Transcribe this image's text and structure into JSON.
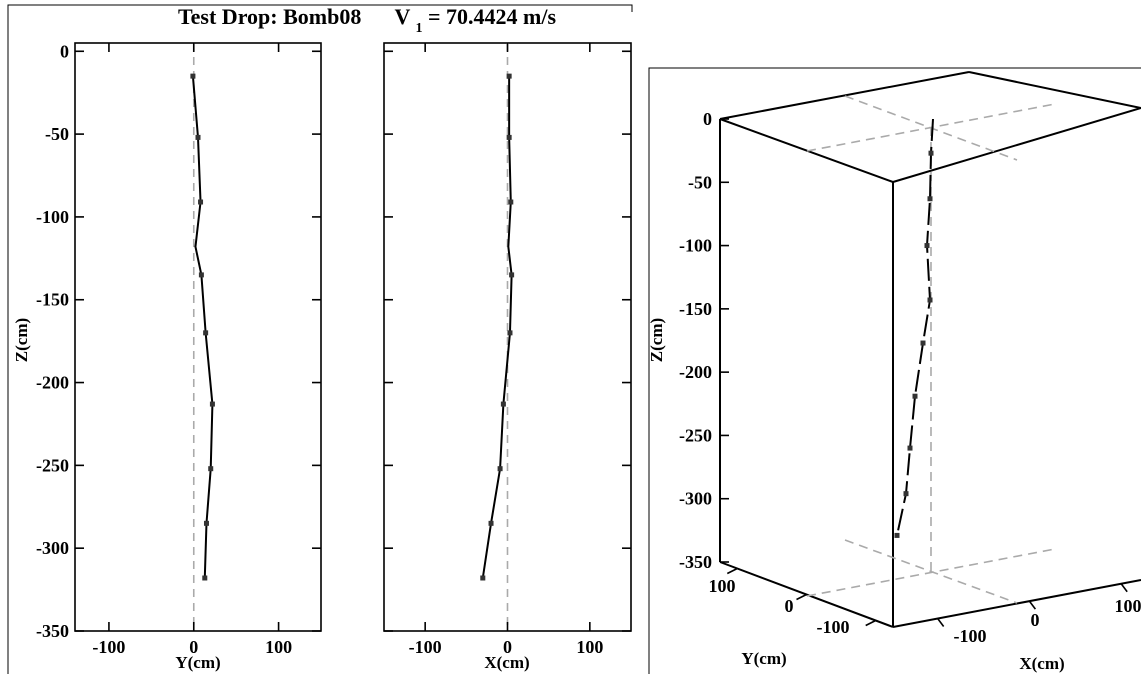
{
  "title": {
    "prefix": "Test Drop: Bomb08",
    "velocity_symbol": "V",
    "velocity_subscript": "1",
    "velocity_value": "= 70.4424 m/s"
  },
  "colors": {
    "trajectory": "#000000",
    "reference": "#aaaaaa",
    "frame": "#000000",
    "background": "#ffffff"
  },
  "chart_data": [
    {
      "type": "line",
      "name": "side-view-Y",
      "xlabel": "Y(cm)",
      "ylabel": "Z(cm)",
      "xlim": [
        -140,
        150
      ],
      "ylim": [
        -350,
        5
      ],
      "xticks": [
        -100,
        0,
        100
      ],
      "yticks": [
        0,
        -50,
        -100,
        -150,
        -200,
        -250,
        -300,
        -350
      ],
      "x": [
        -1,
        5,
        8,
        2,
        9,
        14,
        22,
        20,
        15,
        13
      ],
      "y": [
        -15,
        -52,
        -91,
        -118,
        -135,
        -170,
        -213,
        -252,
        -285,
        -318
      ],
      "marker_indices": [
        0,
        1,
        2,
        4,
        5,
        6,
        7,
        8,
        9
      ],
      "reference_x": 0
    },
    {
      "type": "line",
      "name": "side-view-X",
      "xlabel": "X(cm)",
      "xlim": [
        -150,
        150
      ],
      "ylim": [
        -350,
        5
      ],
      "xticks": [
        -100,
        0,
        100
      ],
      "x": [
        2,
        2,
        4,
        1,
        5,
        3,
        -5,
        -9,
        -20,
        -30
      ],
      "y": [
        -15,
        -52,
        -91,
        -118,
        -135,
        -170,
        -213,
        -252,
        -285,
        -318
      ],
      "marker_indices": [
        0,
        1,
        2,
        4,
        5,
        6,
        7,
        8,
        9
      ],
      "reference_x": 0
    },
    {
      "type": "line3d",
      "name": "perspective-view",
      "xlabel": "X(cm)",
      "ylabel": "Y(cm)",
      "zlabel": "Z(cm)",
      "zticks": [
        0,
        -50,
        -100,
        -150,
        -200,
        -250,
        -300,
        -350
      ],
      "xticks": [
        "-100",
        "0",
        "100"
      ],
      "yticks": [
        "100",
        "0",
        "-100"
      ],
      "z": [
        0,
        -27,
        -63,
        -100,
        -143,
        -177,
        -219,
        -260,
        -296,
        -329
      ]
    }
  ]
}
